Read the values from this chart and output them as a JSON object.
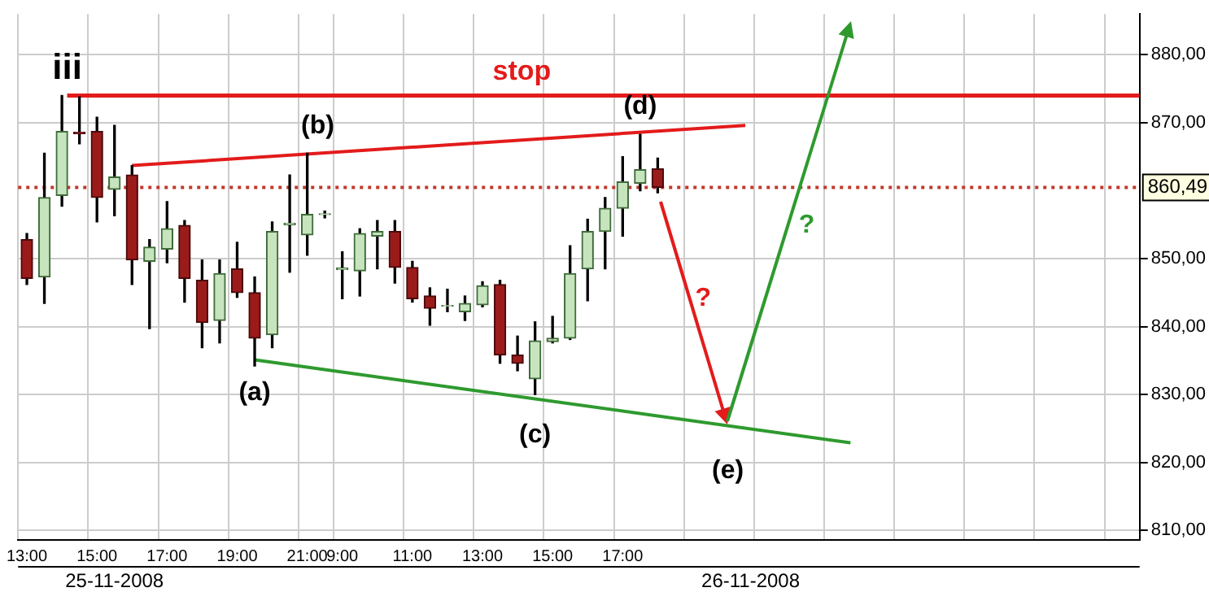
{
  "chart_data": {
    "type": "candlestick",
    "categories": [
      "13:00",
      null,
      null,
      null,
      "15:00",
      null,
      null,
      null,
      "17:00",
      null,
      null,
      null,
      "19:00",
      null,
      null,
      null,
      "21:00",
      null,
      "9:00",
      null,
      null,
      null,
      "11:00",
      null,
      null,
      null,
      "13:00",
      null,
      null,
      null,
      "15:00",
      null,
      null,
      null,
      "17:00",
      null,
      null,
      null,
      null,
      null,
      null,
      null,
      null,
      null,
      null,
      null,
      null,
      null,
      null,
      null,
      null,
      null,
      null,
      null,
      null,
      null,
      null,
      null,
      null,
      null,
      null,
      null,
      null,
      null
    ],
    "ohlc": [
      [
        852.8,
        853.7,
        846.2,
        847.1
      ],
      [
        847.3,
        865.5,
        843.4,
        859.0
      ],
      [
        859.3,
        874.0,
        857.7,
        868.7
      ],
      [
        868.6,
        873.8,
        866.9,
        868.4
      ],
      [
        868.7,
        870.8,
        855.4,
        859.0
      ],
      [
        860.2,
        869.6,
        856.3,
        862.0
      ],
      [
        862.3,
        863.7,
        846.2,
        849.8
      ],
      [
        849.6,
        852.8,
        839.7,
        851.7
      ],
      [
        851.4,
        858.4,
        849.4,
        854.4
      ],
      [
        854.9,
        855.6,
        843.6,
        847.1
      ],
      [
        846.8,
        849.8,
        836.9,
        840.6
      ],
      [
        840.9,
        849.8,
        837.6,
        847.8
      ],
      [
        848.5,
        852.4,
        844.3,
        845.0
      ],
      [
        845.0,
        847.3,
        834.2,
        838.3
      ],
      [
        838.8,
        855.4,
        836.9,
        854.0
      ],
      [
        855.0,
        862.3,
        848.0,
        855.2
      ],
      [
        853.5,
        865.5,
        850.5,
        856.5
      ],
      [
        856.5,
        857.0,
        856.0,
        856.6
      ],
      [
        848.4,
        851.0,
        844.1,
        848.6
      ],
      [
        848.2,
        854.4,
        844.5,
        853.7
      ],
      [
        853.3,
        855.6,
        848.5,
        854.0
      ],
      [
        854.0,
        855.6,
        846.4,
        848.7
      ],
      [
        848.7,
        849.6,
        843.6,
        844.1
      ],
      [
        844.5,
        845.7,
        840.2,
        842.7
      ],
      [
        843.0,
        845.5,
        842.2,
        843.1
      ],
      [
        842.2,
        844.5,
        840.9,
        843.4
      ],
      [
        843.2,
        846.6,
        842.9,
        846.0
      ],
      [
        846.2,
        846.8,
        834.6,
        835.8
      ],
      [
        835.8,
        838.6,
        833.5,
        834.6
      ],
      [
        832.3,
        840.7,
        830.0,
        837.9
      ],
      [
        837.8,
        841.5,
        837.6,
        838.3
      ],
      [
        838.3,
        851.9,
        838.1,
        847.8
      ],
      [
        848.5,
        855.8,
        843.8,
        854.0
      ],
      [
        854.0,
        859.0,
        848.5,
        857.4
      ],
      [
        857.4,
        865.0,
        853.3,
        861.3
      ],
      [
        861.1,
        868.3,
        860.0,
        863.1
      ],
      [
        863.2,
        864.8,
        859.7,
        860.49
      ],
      null,
      null,
      null,
      null,
      null,
      null,
      null,
      null,
      null,
      null,
      null,
      null,
      null,
      null,
      null,
      null,
      null,
      null,
      null,
      null,
      null,
      null,
      null,
      null,
      null,
      null,
      null
    ],
    "series": [
      {
        "type": "line",
        "color": "#e31b1b",
        "values": [
          null,
          null,
          null,
          null,
          null,
          null,
          863.7,
          null,
          null,
          null,
          null,
          null,
          null,
          null,
          null,
          null,
          null,
          null,
          null,
          null,
          null,
          null,
          null,
          null,
          null,
          null,
          null,
          null,
          null,
          null,
          null,
          null,
          null,
          null,
          null,
          null,
          null,
          null,
          null,
          null,
          null,
          869.6,
          null,
          null,
          null,
          null,
          null,
          null,
          null,
          null,
          null,
          null,
          null,
          null,
          null,
          null,
          null,
          null,
          null,
          null,
          null,
          null,
          null,
          null
        ]
      },
      {
        "type": "line",
        "color": "#2e9a2e",
        "values": [
          null,
          null,
          null,
          null,
          null,
          null,
          null,
          null,
          null,
          null,
          null,
          null,
          null,
          835.1,
          null,
          null,
          null,
          null,
          null,
          null,
          null,
          null,
          null,
          null,
          null,
          null,
          null,
          null,
          null,
          null,
          null,
          null,
          null,
          null,
          null,
          null,
          null,
          null,
          null,
          null,
          null,
          null,
          null,
          null,
          null,
          null,
          null,
          822.9,
          null,
          null,
          null,
          null,
          null,
          null,
          null,
          null,
          null,
          null,
          null,
          null,
          null,
          null,
          null,
          null
        ]
      }
    ],
    "ylim": [
      808.6,
      886
    ],
    "yticks": [
      {
        "value": 810,
        "label": "810,00"
      },
      {
        "value": 820,
        "label": "820,00"
      },
      {
        "value": 830,
        "label": "830,00"
      },
      {
        "value": 840,
        "label": "840,00"
      },
      {
        "value": 850,
        "label": "850,00"
      },
      {
        "value": 870,
        "label": "870,00"
      },
      {
        "value": 880,
        "label": "880,00"
      }
    ],
    "grid": true,
    "legend": false,
    "ref_lines": [
      {
        "axis": "y",
        "value": 874,
        "label": "stop",
        "color": "#e31b1b",
        "line_style": "solid"
      },
      {
        "axis": "y",
        "value": 860.49,
        "label": "860,49",
        "color": "#c0392b",
        "line_style": "dotted"
      }
    ],
    "annotations": [
      {
        "text": "iii",
        "y": 874
      },
      "(b)",
      "(d)",
      "(a)",
      "(c)",
      {
        "text": "(e)",
        "y": 825.4
      },
      "?",
      "?",
      "25-11-2008",
      "26-11-2008"
    ]
  }
}
